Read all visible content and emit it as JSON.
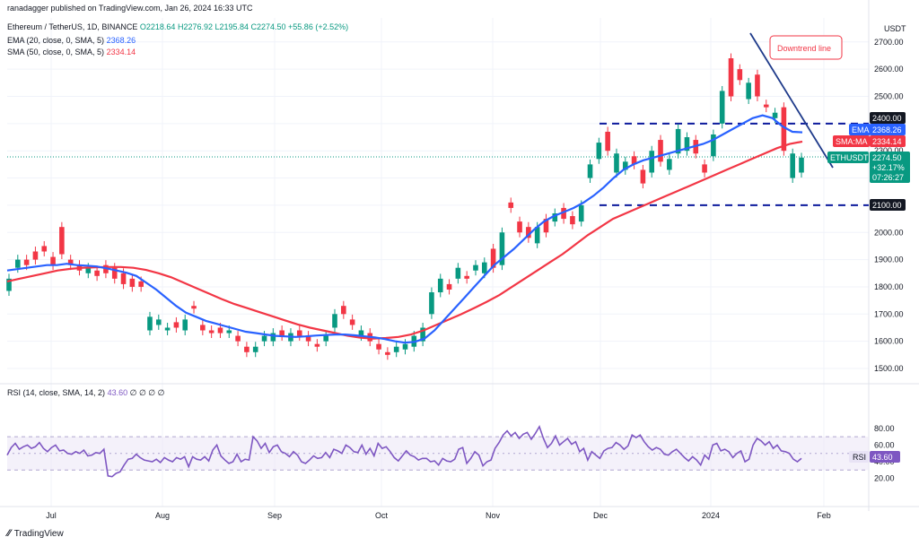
{
  "header": {
    "published": "ranadagger published on TradingView.com, Jan 26, 2024 16:33 UTC",
    "symbol_line": "Ethereum / TetherUS, 1D, BINANCE",
    "ohlc": "O2218.64 H2276.92 L2195.84 C2274.50 +55.86 (+2.52%)",
    "ema_label": "EMA (20, close, 0, SMA, 5)",
    "ema_value": "2368.26",
    "sma_label": "SMA (50, close, 0, SMA, 5)",
    "sma_value": "2334.14",
    "rsi_label": "RSI (14, close, SMA, 14, 2)",
    "rsi_value": "43.60",
    "rsi_extra": "∅ ∅ ∅ ∅",
    "currency": "USDT"
  },
  "footer": {
    "brand": "TradingView"
  },
  "colors": {
    "up": "#089981",
    "down": "#f23645",
    "ema": "#2962ff",
    "sma": "#f23645",
    "rsi": "#7e57c2",
    "trend": "#1e3a8a",
    "support": "#0c1a9c",
    "eth_badge": "#089981"
  },
  "chart_data": {
    "type": "candlestick",
    "title": "Ethereum / TetherUS, 1D, BINANCE",
    "price_axis": {
      "ticks": [
        1500,
        1600,
        1700,
        1800,
        1900,
        2000,
        2100,
        2200,
        2300,
        2400,
        2500,
        2600,
        2700
      ],
      "ylim": [
        1465,
        2765
      ],
      "unit": "USDT"
    },
    "x_labels": [
      "Jul",
      "Aug",
      "Sep",
      "Oct",
      "Nov",
      "Dec",
      "2024",
      "Feb"
    ],
    "annotations": {
      "downtrend_label": "Downtrend line",
      "resistance_level": 2400.0,
      "resistance_label": "2400.00",
      "support_level": 2100.0,
      "support_label": "2100.00"
    },
    "price_badges": {
      "ema_tag": "EMA",
      "ema_value": "2368.26",
      "sma_tag": "SMA:MA",
      "sma_value": "2334.14",
      "eth_tag": "ETHUSDT",
      "eth_price": "2274.50",
      "eth_change": "+32.17%",
      "eth_countdown": "07:26:27"
    },
    "series_path": [
      [
        1785,
        1830
      ],
      [
        1870,
        1900
      ],
      [
        1900,
        1880
      ],
      [
        1930,
        1900
      ],
      [
        1950,
        1930
      ],
      [
        1910,
        1880
      ],
      [
        2020,
        1920
      ],
      [
        1900,
        1880
      ],
      [
        1880,
        1860
      ],
      [
        1850,
        1870
      ],
      [
        1860,
        1840
      ],
      [
        1880,
        1850
      ],
      [
        1870,
        1830
      ],
      [
        1850,
        1810
      ],
      [
        1830,
        1800
      ],
      [
        1820,
        1800
      ],
      [
        1640,
        1690
      ],
      [
        1660,
        1680
      ],
      [
        1640,
        1650
      ],
      [
        1670,
        1650
      ],
      [
        1640,
        1680
      ],
      [
        1730,
        1720
      ],
      [
        1660,
        1640
      ],
      [
        1640,
        1630
      ],
      [
        1650,
        1630
      ],
      [
        1630,
        1640
      ],
      [
        1620,
        1600
      ],
      [
        1580,
        1560
      ],
      [
        1560,
        1580
      ],
      [
        1600,
        1620
      ],
      [
        1600,
        1630
      ],
      [
        1640,
        1620
      ],
      [
        1600,
        1630
      ],
      [
        1640,
        1620
      ],
      [
        1620,
        1600
      ],
      [
        1590,
        1580
      ],
      [
        1600,
        1620
      ],
      [
        1650,
        1700
      ],
      [
        1730,
        1700
      ],
      [
        1680,
        1660
      ],
      [
        1620,
        1640
      ],
      [
        1630,
        1600
      ],
      [
        1590,
        1570
      ],
      [
        1560,
        1550
      ],
      [
        1560,
        1580
      ],
      [
        1570,
        1590
      ],
      [
        1580,
        1620
      ],
      [
        1600,
        1650
      ],
      [
        1700,
        1780
      ],
      [
        1780,
        1830
      ],
      [
        1810,
        1790
      ],
      [
        1830,
        1870
      ],
      [
        1840,
        1830
      ],
      [
        1860,
        1880
      ],
      [
        1850,
        1890
      ],
      [
        1940,
        1870
      ],
      [
        1880,
        2000
      ],
      [
        2110,
        2090
      ],
      [
        2040,
        2000
      ],
      [
        2020,
        1980
      ],
      [
        1960,
        2020
      ],
      [
        2050,
        2000
      ],
      [
        2040,
        2070
      ],
      [
        2090,
        2050
      ],
      [
        2060,
        2030
      ],
      [
        2040,
        2100
      ],
      [
        2200,
        2250
      ],
      [
        2270,
        2330
      ],
      [
        2370,
        2300
      ],
      [
        2220,
        2290
      ],
      [
        2230,
        2260
      ],
      [
        2280,
        2250
      ],
      [
        2230,
        2180
      ],
      [
        2220,
        2300
      ],
      [
        2340,
        2260
      ],
      [
        2230,
        2270
      ],
      [
        2290,
        2380
      ],
      [
        2300,
        2350
      ],
      [
        2340,
        2290
      ],
      [
        2250,
        2220
      ],
      [
        2280,
        2360
      ],
      [
        2400,
        2520
      ],
      [
        2640,
        2500
      ],
      [
        2600,
        2560
      ],
      [
        2490,
        2550
      ],
      [
        2580,
        2500
      ],
      [
        2470,
        2460
      ],
      [
        2420,
        2440
      ],
      [
        2460,
        2300
      ],
      [
        2200,
        2290
      ],
      [
        2220,
        2275
      ]
    ],
    "ema20": [
      1860,
      1865,
      1870,
      1875,
      1880,
      1880,
      1885,
      1880,
      1878,
      1875,
      1868,
      1860,
      1852,
      1840,
      1815,
      1790,
      1760,
      1730,
      1705,
      1690,
      1675,
      1665,
      1655,
      1645,
      1635,
      1630,
      1625,
      1620,
      1618,
      1616,
      1618,
      1621,
      1623,
      1625,
      1625,
      1622,
      1618,
      1614,
      1608,
      1600,
      1595,
      1598,
      1610,
      1640,
      1680,
      1720,
      1760,
      1800,
      1840,
      1880,
      1910,
      1940,
      1975,
      2010,
      2040,
      2060,
      2075,
      2090,
      2110,
      2135,
      2165,
      2200,
      2230,
      2250,
      2265,
      2275,
      2285,
      2295,
      2305,
      2315,
      2325,
      2340,
      2360,
      2380,
      2400,
      2420,
      2430,
      2420,
      2390,
      2370,
      2368
    ],
    "sma50": [
      1820,
      1830,
      1840,
      1850,
      1860,
      1866,
      1870,
      1872,
      1873,
      1873,
      1870,
      1862,
      1850,
      1835,
      1815,
      1795,
      1775,
      1755,
      1737,
      1722,
      1707,
      1692,
      1677,
      1662,
      1650,
      1640,
      1630,
      1620,
      1613,
      1610,
      1612,
      1616,
      1625,
      1640,
      1660,
      1680,
      1700,
      1722,
      1745,
      1770,
      1800,
      1830,
      1860,
      1890,
      1920,
      1955,
      1990,
      2020,
      2050,
      2070,
      2090,
      2110,
      2130,
      2150,
      2170,
      2190,
      2210,
      2230,
      2250,
      2270,
      2290,
      2310,
      2325,
      2334
    ],
    "rsi": {
      "ticks": [
        20,
        40,
        60,
        80
      ],
      "ylim": [
        12,
        88
      ],
      "band": [
        30,
        70
      ],
      "values": [
        48,
        57,
        62,
        55,
        58,
        60,
        56,
        58,
        63,
        56,
        52,
        57,
        60,
        53,
        54,
        50,
        49,
        52,
        50,
        54,
        47,
        48,
        51,
        50,
        55,
        23,
        22,
        26,
        28,
        36,
        43,
        44,
        49,
        45,
        42,
        41,
        40,
        43,
        39,
        45,
        42,
        40,
        45,
        43,
        46,
        34,
        46,
        43,
        42,
        46,
        41,
        54,
        60,
        47,
        42,
        38,
        40,
        49,
        40,
        43,
        42,
        70,
        65,
        56,
        62,
        51,
        58,
        60,
        52,
        50,
        46,
        52,
        48,
        40,
        38,
        42,
        47,
        44,
        45,
        51,
        45,
        55,
        53,
        50,
        60,
        57,
        52,
        51,
        60,
        49,
        56,
        47,
        62,
        56,
        58,
        52,
        45,
        41,
        47,
        53,
        48,
        46,
        42,
        44,
        44,
        40,
        41,
        36,
        44,
        41,
        40,
        43,
        55,
        57,
        38,
        44,
        52,
        48,
        35,
        40,
        42,
        56,
        63,
        72,
        77,
        71,
        75,
        68,
        73,
        75,
        67,
        74,
        82,
        68,
        57,
        62,
        71,
        60,
        64,
        68,
        61,
        64,
        52,
        56,
        42,
        52,
        48,
        44,
        53,
        56,
        57,
        63,
        60,
        55,
        59,
        72,
        69,
        72,
        64,
        58,
        54,
        57,
        55,
        49,
        48,
        52,
        55,
        50,
        45,
        41,
        46,
        42,
        36,
        48,
        43,
        60,
        62,
        53,
        55,
        52,
        45,
        50,
        53,
        40,
        43,
        60,
        68,
        65,
        60,
        64,
        56,
        60,
        53,
        52,
        50,
        43,
        40,
        44
      ]
    }
  }
}
